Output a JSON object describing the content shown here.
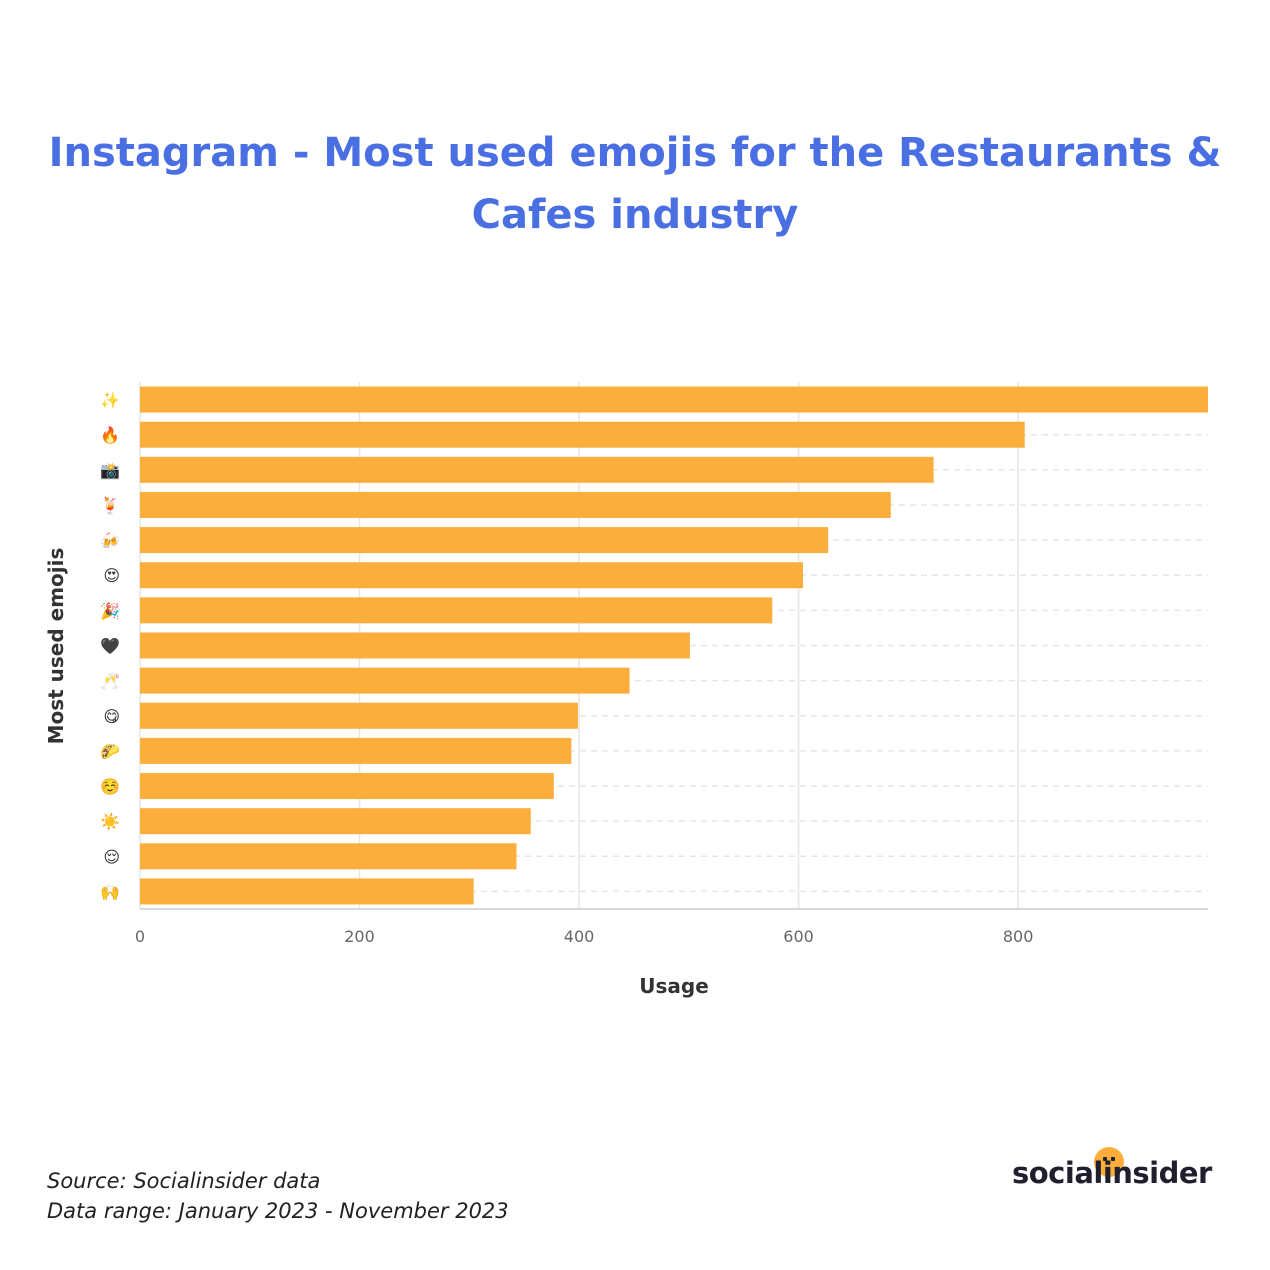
{
  "page": {
    "title": "Instagram - Most used emojis for the Restaurants & Cafes industry",
    "source": "Source: Socialinsider data",
    "date_range": "Data range: January 2023 - November 2023",
    "brand": "socialinsider"
  },
  "colors": {
    "title": "#4a6fe3",
    "bar": "#fbae3c",
    "grid": "#e6e6e6",
    "axis_text": "#666666",
    "label_text": "#333333"
  },
  "chart_data": {
    "type": "bar",
    "orientation": "horizontal",
    "title": "Instagram - Most used emojis for the Restaurants & Cafes industry",
    "xlabel": "Usage",
    "ylabel": "Most used emojis",
    "categories": [
      "✨",
      "🔥",
      "📸",
      "🍹",
      "🍻",
      "😍",
      "🎉",
      "🖤",
      "🥂",
      "😋",
      "🌮",
      "☺️",
      "☀️",
      "😌",
      "🙌"
    ],
    "values": [
      973,
      806,
      723,
      684,
      627,
      604,
      576,
      501,
      446,
      399,
      393,
      377,
      356,
      343,
      304
    ],
    "xlim": [
      0,
      973
    ],
    "xticks": [
      0,
      200,
      400,
      600,
      800
    ],
    "grid": true,
    "legend": "none"
  }
}
